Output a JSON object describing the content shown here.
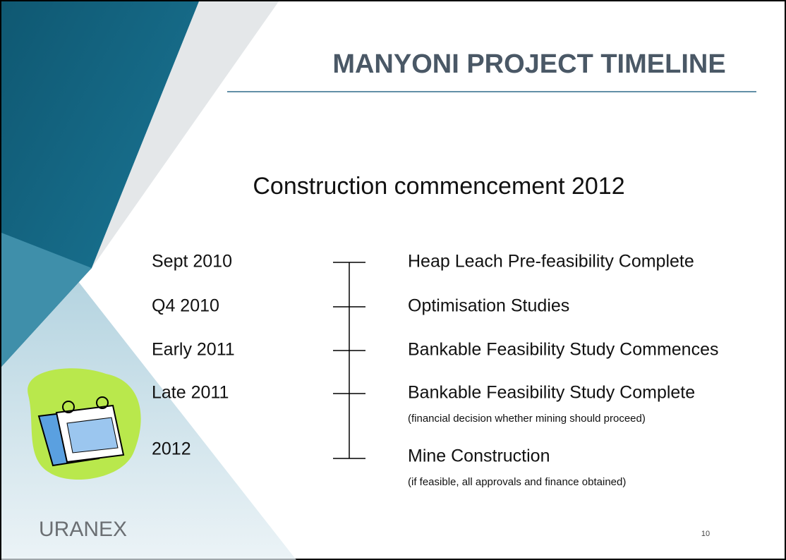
{
  "title": "MANYONI PROJECT TIMELINE",
  "subtitle": "Construction commencement 2012",
  "timeline": [
    {
      "date": "Sept 2010",
      "label": "Heap Leach Pre-feasibility Complete"
    },
    {
      "date": "Q4 2010",
      "label": "Optimisation Studies"
    },
    {
      "date": "Early 2011",
      "label": "Bankable Feasibility Study Commences"
    },
    {
      "date": "Late 2011",
      "label": "Bankable Feasibility Study Complete",
      "note": "(financial decision whether mining should proceed)"
    },
    {
      "date": "2012",
      "label": "Mine Construction",
      "note": "(if feasible, all approvals and finance obtained)"
    }
  ],
  "logo": "URANEX",
  "page_number": "10"
}
